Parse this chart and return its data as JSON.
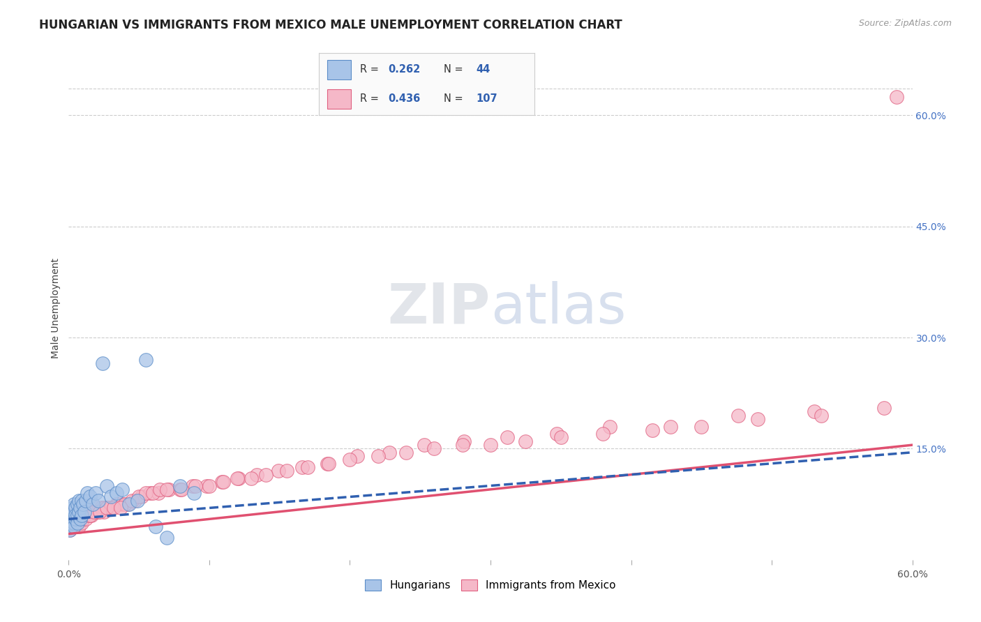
{
  "title": "HUNGARIAN VS IMMIGRANTS FROM MEXICO MALE UNEMPLOYMENT CORRELATION CHART",
  "source": "Source: ZipAtlas.com",
  "ylabel": "Male Unemployment",
  "xlim": [
    0.0,
    0.6
  ],
  "ylim": [
    0.0,
    0.68
  ],
  "yticks_right": [
    0.15,
    0.3,
    0.45,
    0.6
  ],
  "ytick_right_labels": [
    "15.0%",
    "30.0%",
    "45.0%",
    "60.0%"
  ],
  "xticks": [
    0.0,
    0.1,
    0.2,
    0.3,
    0.4,
    0.5,
    0.6
  ],
  "xtick_labels": [
    "0.0%",
    "",
    "",
    "",
    "",
    "",
    "60.0%"
  ],
  "blue_color": "#A8C4E8",
  "pink_color": "#F5B8C8",
  "blue_edge_color": "#5B8DC8",
  "pink_edge_color": "#E06080",
  "blue_line_color": "#3060B0",
  "pink_line_color": "#E05070",
  "watermark_zip": "ZIP",
  "watermark_atlas": "atlas",
  "title_fontsize": 12,
  "axis_label_fontsize": 10,
  "tick_fontsize": 10,
  "blue_x": [
    0.001,
    0.001,
    0.002,
    0.002,
    0.002,
    0.003,
    0.003,
    0.003,
    0.004,
    0.004,
    0.004,
    0.004,
    0.005,
    0.005,
    0.005,
    0.006,
    0.006,
    0.006,
    0.007,
    0.007,
    0.008,
    0.008,
    0.009,
    0.009,
    0.01,
    0.011,
    0.012,
    0.013,
    0.015,
    0.017,
    0.019,
    0.021,
    0.024,
    0.027,
    0.03,
    0.034,
    0.038,
    0.043,
    0.049,
    0.055,
    0.062,
    0.07,
    0.079,
    0.089
  ],
  "blue_y": [
    0.04,
    0.055,
    0.045,
    0.065,
    0.05,
    0.06,
    0.07,
    0.055,
    0.05,
    0.065,
    0.075,
    0.045,
    0.055,
    0.07,
    0.06,
    0.06,
    0.075,
    0.05,
    0.065,
    0.08,
    0.055,
    0.07,
    0.06,
    0.08,
    0.075,
    0.065,
    0.08,
    0.09,
    0.085,
    0.075,
    0.09,
    0.08,
    0.265,
    0.1,
    0.085,
    0.09,
    0.095,
    0.075,
    0.08,
    0.27,
    0.045,
    0.03,
    0.1,
    0.09
  ],
  "pink_x": [
    0.001,
    0.001,
    0.002,
    0.002,
    0.002,
    0.003,
    0.003,
    0.003,
    0.004,
    0.004,
    0.004,
    0.005,
    0.005,
    0.005,
    0.006,
    0.006,
    0.007,
    0.007,
    0.007,
    0.008,
    0.008,
    0.009,
    0.009,
    0.01,
    0.01,
    0.011,
    0.012,
    0.013,
    0.014,
    0.015,
    0.016,
    0.017,
    0.019,
    0.021,
    0.023,
    0.025,
    0.028,
    0.031,
    0.034,
    0.038,
    0.042,
    0.047,
    0.052,
    0.058,
    0.064,
    0.071,
    0.079,
    0.088,
    0.098,
    0.109,
    0.121,
    0.134,
    0.149,
    0.166,
    0.184,
    0.205,
    0.228,
    0.253,
    0.281,
    0.312,
    0.347,
    0.385,
    0.428,
    0.476,
    0.53,
    0.589,
    0.02,
    0.025,
    0.03,
    0.035,
    0.04,
    0.045,
    0.05,
    0.055,
    0.06,
    0.065,
    0.07,
    0.08,
    0.09,
    0.1,
    0.11,
    0.12,
    0.13,
    0.14,
    0.155,
    0.17,
    0.185,
    0.2,
    0.22,
    0.24,
    0.26,
    0.28,
    0.3,
    0.325,
    0.35,
    0.38,
    0.415,
    0.45,
    0.49,
    0.535,
    0.58,
    0.015,
    0.018,
    0.022,
    0.027,
    0.032,
    0.037
  ],
  "pink_y": [
    0.04,
    0.055,
    0.045,
    0.06,
    0.05,
    0.055,
    0.065,
    0.045,
    0.05,
    0.06,
    0.045,
    0.055,
    0.065,
    0.05,
    0.055,
    0.065,
    0.05,
    0.06,
    0.045,
    0.055,
    0.065,
    0.05,
    0.06,
    0.055,
    0.065,
    0.06,
    0.055,
    0.065,
    0.06,
    0.065,
    0.06,
    0.065,
    0.07,
    0.065,
    0.07,
    0.065,
    0.07,
    0.07,
    0.075,
    0.075,
    0.075,
    0.08,
    0.085,
    0.09,
    0.09,
    0.095,
    0.095,
    0.1,
    0.1,
    0.105,
    0.11,
    0.115,
    0.12,
    0.125,
    0.13,
    0.14,
    0.145,
    0.155,
    0.16,
    0.165,
    0.17,
    0.18,
    0.18,
    0.195,
    0.2,
    0.625,
    0.065,
    0.07,
    0.07,
    0.075,
    0.075,
    0.08,
    0.085,
    0.09,
    0.09,
    0.095,
    0.095,
    0.095,
    0.1,
    0.1,
    0.105,
    0.11,
    0.11,
    0.115,
    0.12,
    0.125,
    0.13,
    0.135,
    0.14,
    0.145,
    0.15,
    0.155,
    0.155,
    0.16,
    0.165,
    0.17,
    0.175,
    0.18,
    0.19,
    0.195,
    0.205,
    0.06,
    0.065,
    0.065,
    0.07,
    0.07,
    0.07
  ],
  "blue_line_x0": 0.0,
  "blue_line_x1": 0.6,
  "blue_line_y0": 0.055,
  "blue_line_y1": 0.145,
  "pink_line_x0": 0.0,
  "pink_line_x1": 0.6,
  "pink_line_y0": 0.035,
  "pink_line_y1": 0.155
}
